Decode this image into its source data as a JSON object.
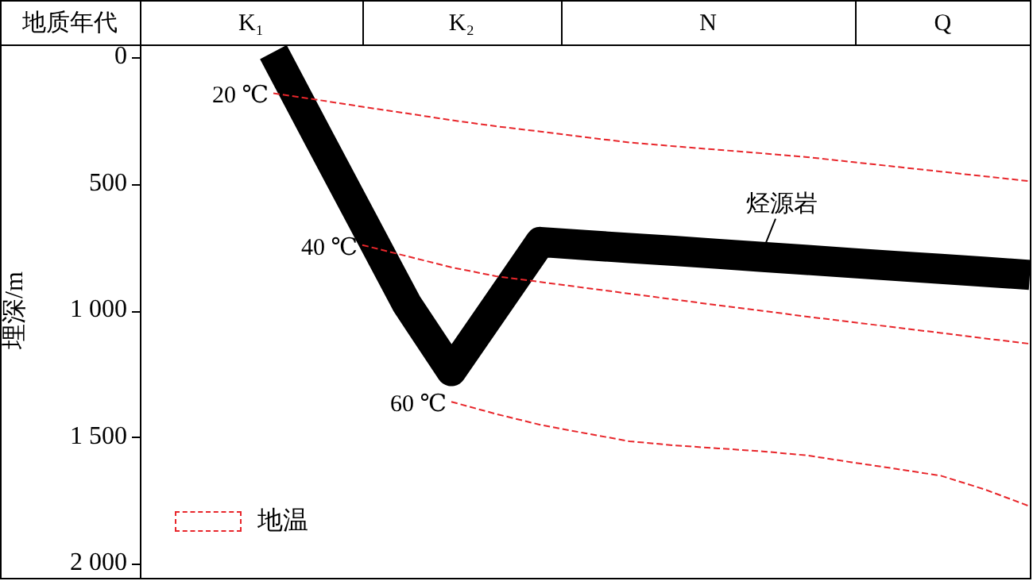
{
  "chart_data": {
    "type": "line",
    "xlabel": "地质年代",
    "ylabel": "埋深/m",
    "legend_title": "地温",
    "marker": "none",
    "grid": false,
    "tick_labels": "y",
    "categories": [
      null,
      null,
      null,
      null,
      null,
      null,
      null,
      null,
      null,
      null,
      null,
      null,
      null,
      null,
      null,
      null,
      null,
      null,
      null,
      null,
      null
    ],
    "ylim": [
      2050,
      -50
    ],
    "yticks": [
      0,
      500,
      {
        "value": 1000,
        "label": "1 000"
      },
      {
        "value": 1500,
        "label": "1 500"
      },
      {
        "value": 2000,
        "label": "2 000"
      }
    ],
    "annotations": [
      "K₁",
      "K₂",
      "N",
      "Q"
    ],
    "series": [
      {
        "name": "烃源岩",
        "color": "#000000",
        "line_style": "solid",
        "values": [
          null,
          null,
          null,
          -20,
          313,
          644,
          975,
          1240,
          985,
          730,
          742,
          754,
          765,
          777,
          789,
          801,
          813,
          825,
          836,
          848,
          860
        ]
      },
      {
        "name": "20 ℃",
        "color": "#e8262b",
        "line_style": "dashed",
        "values": [
          null,
          null,
          null,
          143,
          169,
          196,
          222,
          249,
          273,
          294,
          316,
          337,
          352,
          366,
          380,
          395,
          414,
          433,
          452,
          471,
          490
        ]
      },
      {
        "name": "40 ℃",
        "color": "#e8262b",
        "line_style": "dashed",
        "values": [
          null,
          null,
          null,
          null,
          null,
          742,
          786,
          830,
          865,
          888,
          911,
          934,
          957,
          980,
          1002,
          1025,
          1046,
          1068,
          1089,
          1111,
          1132
        ]
      },
      {
        "name": "60 ℃",
        "color": "#e8262b",
        "line_style": "dashed",
        "values": [
          null,
          null,
          null,
          null,
          null,
          null,
          null,
          1361,
          1409,
          1452,
          1485,
          1517,
          1533,
          1545,
          1557,
          1573,
          1600,
          1626,
          1653,
          1708,
          1774
        ]
      }
    ]
  }
}
